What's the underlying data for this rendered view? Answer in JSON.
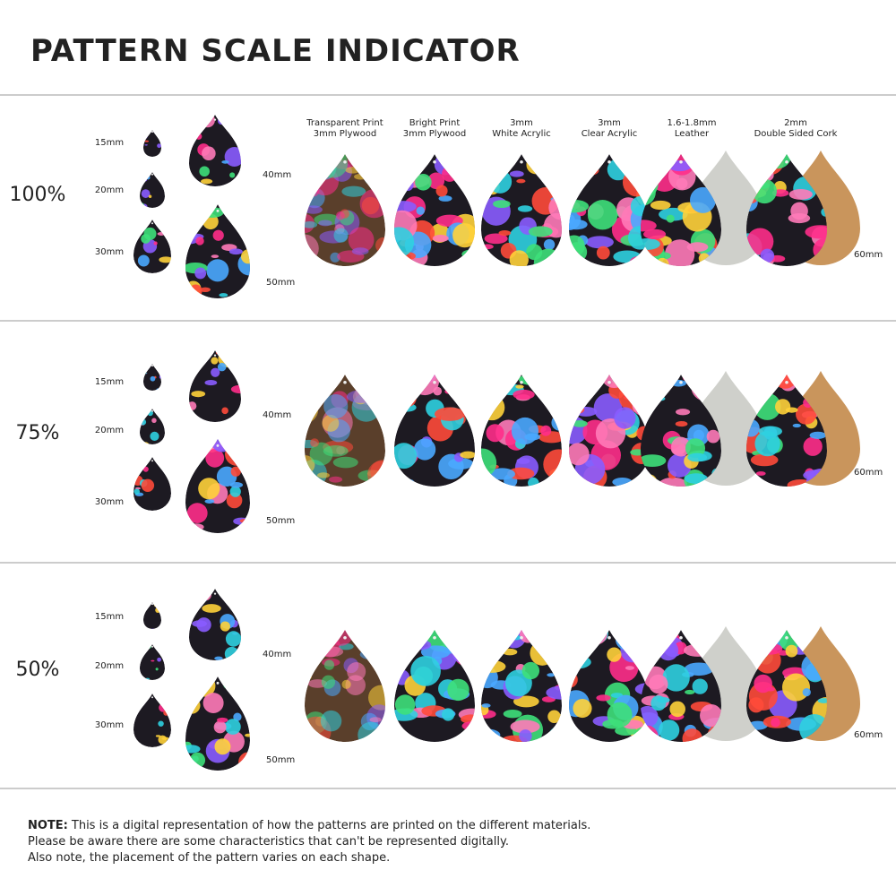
{
  "title": "PATTERN SCALE INDICATOR",
  "materials": [
    {
      "line1": "Transparent Print",
      "line2": "3mm Plywood"
    },
    {
      "line1": "Bright Print",
      "line2": "3mm Plywood"
    },
    {
      "line1": "3mm",
      "line2": "White Acrylic"
    },
    {
      "line1": "3mm",
      "line2": "Clear Acrylic"
    },
    {
      "line1": "1.6-1.8mm",
      "line2": "Leather"
    },
    {
      "line1": "2mm",
      "line2": "Double Sided Cork"
    }
  ],
  "sections": [
    {
      "scale": "100%",
      "sizes": [
        "15mm",
        "20mm",
        "30mm",
        "40mm",
        "50mm"
      ],
      "large_size": "60mm"
    },
    {
      "scale": "75%",
      "sizes": [
        "15mm",
        "20mm",
        "30mm",
        "40mm",
        "50mm"
      ],
      "large_size": "60mm"
    },
    {
      "scale": "50%",
      "sizes": [
        "15mm",
        "20mm",
        "30mm",
        "40mm",
        "50mm"
      ],
      "large_size": "60mm"
    }
  ],
  "note": {
    "label": "NOTE:",
    "lines": [
      "This is a digital representation of how the patterns are printed on the different materials.",
      "Please be aware there are some characteristics that can't be represented digitally.",
      "Also note, the placement of the pattern varies on each shape."
    ]
  }
}
